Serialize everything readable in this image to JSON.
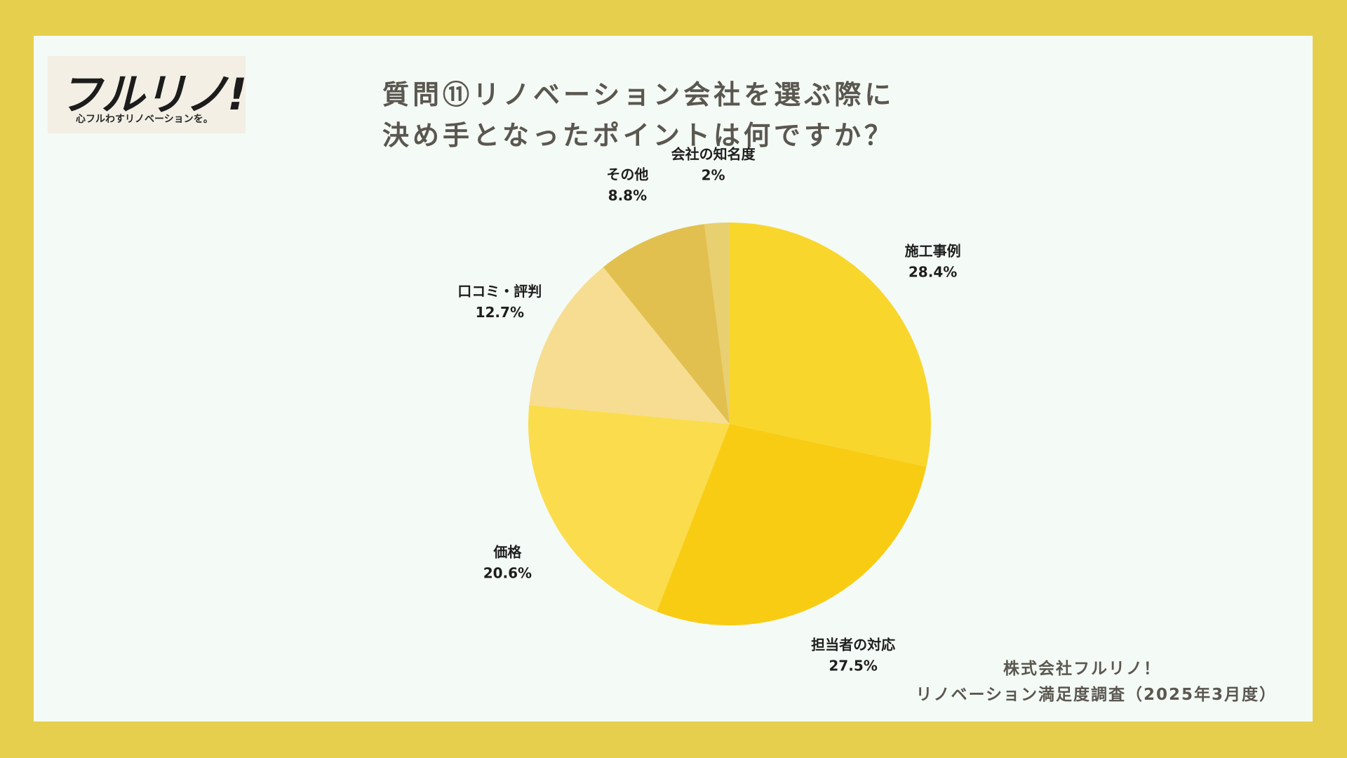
{
  "logo": {
    "text": "フルリノ!",
    "tagline": "心フルわすリノベーションを。"
  },
  "title": {
    "line1": "質問⑪リノベーション会社を選ぶ際に",
    "line2": "決め手となったポイントは何ですか？"
  },
  "footer": {
    "line1": "株式会社フルリノ！",
    "line2": "リノベーション満足度調査（2025年3月度）"
  },
  "chart_data": {
    "type": "pie",
    "title": "質問⑪リノベーション会社を選ぶ際に決め手となったポイントは何ですか？",
    "start_angle": "top",
    "direction": "clockwise",
    "slices": [
      {
        "label": "施工事例",
        "value": 28.4,
        "display": "28.4%",
        "color": "#f9d62c"
      },
      {
        "label": "担当者の対応",
        "value": 27.5,
        "display": "27.5%",
        "color": "#f9cc14"
      },
      {
        "label": "価格",
        "value": 20.6,
        "display": "20.6%",
        "color": "#fbdc4c"
      },
      {
        "label": "口コミ・評判",
        "value": 12.7,
        "display": "12.7%",
        "color": "#f6dd91"
      },
      {
        "label": "その他",
        "value": 8.8,
        "display": "8.8%",
        "color": "#e2c04f"
      },
      {
        "label": "会社の知名度",
        "value": 2,
        "display": "2%",
        "color": "#e8cf70"
      }
    ]
  }
}
